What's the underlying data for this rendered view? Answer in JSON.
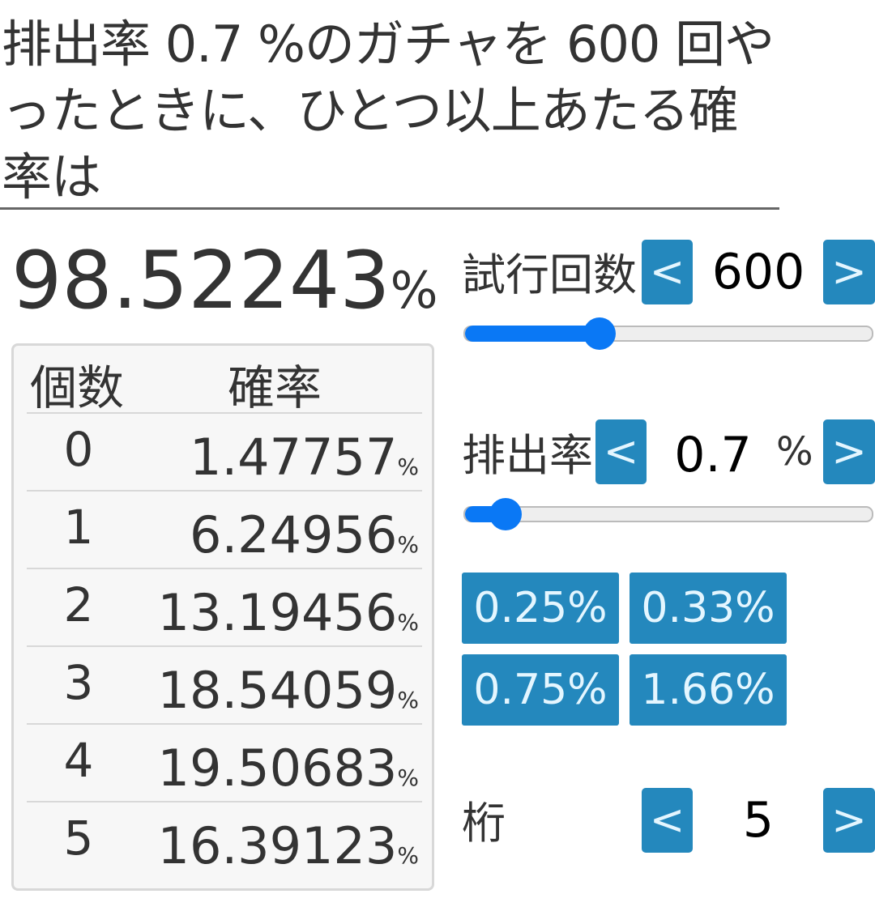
{
  "title": "排出率 0.7 %のガチャを 600 回やったときに、ひとつ以上あたる確率は",
  "result": {
    "value": "98.52243",
    "unit": "%"
  },
  "table": {
    "headers": [
      "個数",
      "確率"
    ],
    "rows": [
      {
        "count": "0",
        "prob": "1.47757",
        "unit": "%"
      },
      {
        "count": "1",
        "prob": "6.24956",
        "unit": "%"
      },
      {
        "count": "2",
        "prob": "13.19456",
        "unit": "%"
      },
      {
        "count": "3",
        "prob": "18.54059",
        "unit": "%"
      },
      {
        "count": "4",
        "prob": "19.50683",
        "unit": "%"
      },
      {
        "count": "5",
        "prob": "16.39123",
        "unit": "%"
      }
    ]
  },
  "trials": {
    "label": "試行回数",
    "value": "600",
    "dec": "<",
    "inc": ">",
    "slider_fill_percent": 33
  },
  "rate": {
    "label": "排出率",
    "value": "0.7",
    "unit": "%",
    "dec": "<",
    "inc": ">",
    "slider_fill_percent": 10
  },
  "presets": [
    "0.25%",
    "0.33%",
    "0.75%",
    "1.66%"
  ],
  "digits": {
    "label": "桁",
    "value": "5",
    "dec": "<",
    "inc": ">"
  },
  "colors": {
    "button": "#2488bd",
    "slider": "#0a78f5",
    "text": "#333333"
  }
}
